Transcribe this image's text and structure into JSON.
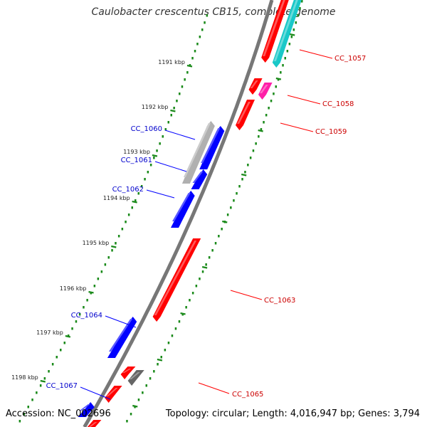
{
  "header": {
    "title": "Caulobacter crescentus CB15, complete genome"
  },
  "footer": {
    "accession": "Accession: NC_002696",
    "summary": "Topology: circular; Length: 4,016,947 bp; Genes: 3,794"
  },
  "colors": {
    "forward_gene": "#ff0000",
    "reverse_gene": "#0000ff",
    "label_forward": "#cc0000",
    "label_reverse": "#0000cc",
    "tick_dots": "#1a8a1a",
    "backbone": "#777777",
    "gray_feature": "#b0b0b0",
    "cyan_feature": "#19c8c8",
    "magenta_feature": "#ff1fa8",
    "dark_gray_feature": "#666666"
  },
  "scale": {
    "ticks": [
      {
        "label": "1191 kbp"
      },
      {
        "label": "1192 kbp"
      },
      {
        "label": "1193 kbp"
      },
      {
        "label": "1194 kbp"
      },
      {
        "label": "1195 kbp"
      },
      {
        "label": "1196 kbp"
      },
      {
        "label": "1197 kbp"
      },
      {
        "label": "1198 kbp"
      }
    ]
  },
  "gene_labels": [
    {
      "text": "CC_1057",
      "strand": "forward"
    },
    {
      "text": "CC_1058",
      "strand": "forward"
    },
    {
      "text": "CC_1059",
      "strand": "forward"
    },
    {
      "text": "CC_1060",
      "strand": "reverse"
    },
    {
      "text": "CC_1061",
      "strand": "reverse"
    },
    {
      "text": "CC_1062",
      "strand": "reverse"
    },
    {
      "text": "CC_1063",
      "strand": "forward"
    },
    {
      "text": "CC_1064",
      "strand": "reverse"
    },
    {
      "text": "CC_1065",
      "strand": "forward"
    },
    {
      "text": "CC_1067",
      "strand": "reverse"
    }
  ]
}
